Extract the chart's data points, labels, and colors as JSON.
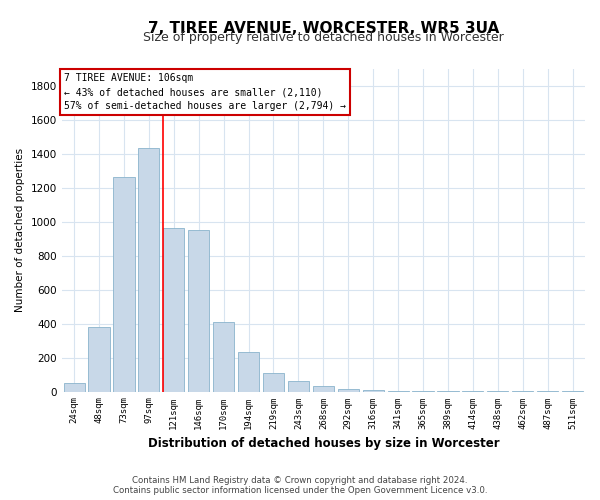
{
  "title": "7, TIREE AVENUE, WORCESTER, WR5 3UA",
  "subtitle": "Size of property relative to detached houses in Worcester",
  "xlabel": "Distribution of detached houses by size in Worcester",
  "ylabel": "Number of detached properties",
  "bar_color": "#c8d8e8",
  "bar_edge_color": "#8ab4cc",
  "categories": [
    "24sqm",
    "48sqm",
    "73sqm",
    "97sqm",
    "121sqm",
    "146sqm",
    "170sqm",
    "194sqm",
    "219sqm",
    "243sqm",
    "268sqm",
    "292sqm",
    "316sqm",
    "341sqm",
    "365sqm",
    "389sqm",
    "414sqm",
    "438sqm",
    "462sqm",
    "487sqm",
    "511sqm"
  ],
  "values": [
    50,
    380,
    1260,
    1430,
    960,
    950,
    410,
    230,
    110,
    60,
    35,
    15,
    8,
    5,
    3,
    2,
    2,
    1,
    1,
    1,
    1
  ],
  "ylim": [
    0,
    1900
  ],
  "yticks": [
    0,
    200,
    400,
    600,
    800,
    1000,
    1200,
    1400,
    1600,
    1800
  ],
  "red_line_x": 3.55,
  "annotation_title": "7 TIREE AVENUE: 106sqm",
  "annotation_line1": "← 43% of detached houses are smaller (2,110)",
  "annotation_line2": "57% of semi-detached houses are larger (2,794) →",
  "footer1": "Contains HM Land Registry data © Crown copyright and database right 2024.",
  "footer2": "Contains public sector information licensed under the Open Government Licence v3.0.",
  "background_color": "#ffffff",
  "plot_background": "#ffffff",
  "grid_color": "#d8e4f0",
  "title_fontsize": 11,
  "subtitle_fontsize": 9,
  "annotation_box_color": "#ffffff",
  "annotation_box_edge": "#cc0000"
}
